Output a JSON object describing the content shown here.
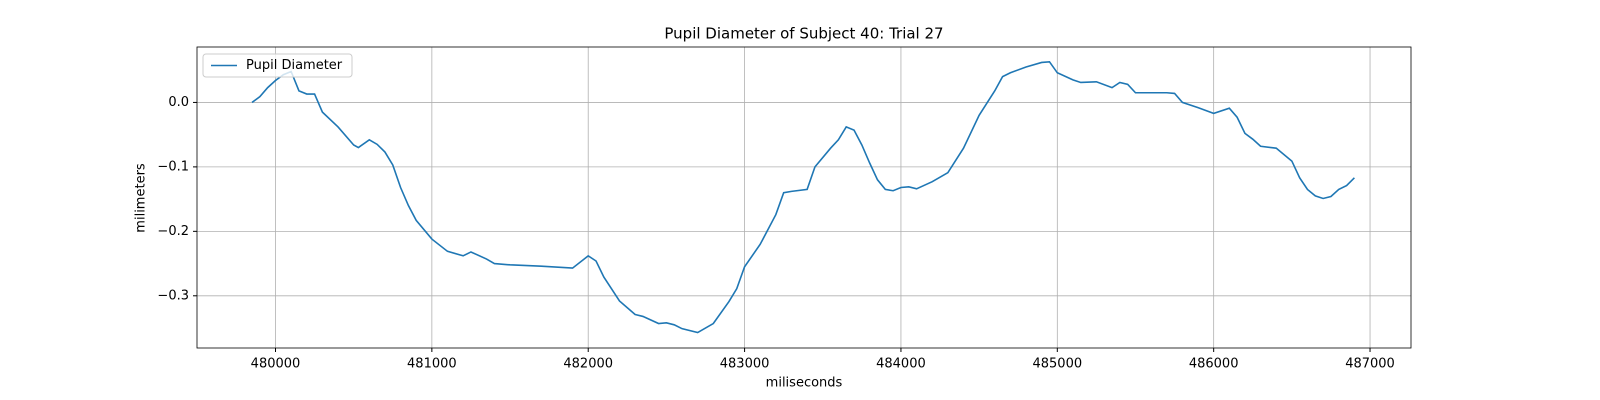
{
  "chart_data": {
    "type": "line",
    "title": "Pupil Diameter of Subject 40: Trial 27",
    "xlabel": "miliseconds",
    "ylabel": "milimeters",
    "x": [
      479850,
      479900,
      479950,
      480000,
      480050,
      480100,
      480150,
      480200,
      480250,
      480300,
      480400,
      480500,
      480530,
      480600,
      480650,
      480700,
      480750,
      480800,
      480850,
      480900,
      481000,
      481100,
      481200,
      481250,
      481350,
      481400,
      481500,
      481700,
      481900,
      482000,
      482050,
      482100,
      482200,
      482300,
      482350,
      482450,
      482500,
      482550,
      482600,
      482700,
      482800,
      482900,
      482950,
      483000,
      483100,
      483200,
      483250,
      483300,
      483400,
      483450,
      483550,
      483600,
      483650,
      483700,
      483750,
      483800,
      483850,
      483900,
      483950,
      484000,
      484050,
      484100,
      484200,
      484300,
      484400,
      484500,
      484600,
      484650,
      484700,
      484800,
      484900,
      484950,
      485000,
      485100,
      485150,
      485250,
      485350,
      485400,
      485450,
      485500,
      485600,
      485700,
      485750,
      485800,
      485900,
      486000,
      486100,
      486150,
      486200,
      486250,
      486300,
      486400,
      486500,
      486550,
      486600,
      486650,
      486700,
      486750,
      486800,
      486850,
      486900
    ],
    "series": [
      {
        "name": "Pupil Diameter",
        "color": "#1f77b4",
        "values": [
          0.0,
          0.009,
          0.023,
          0.034,
          0.043,
          0.048,
          0.018,
          0.013,
          0.013,
          -0.015,
          -0.038,
          -0.066,
          -0.07,
          -0.058,
          -0.065,
          -0.077,
          -0.097,
          -0.132,
          -0.16,
          -0.183,
          -0.212,
          -0.231,
          -0.238,
          -0.232,
          -0.243,
          -0.25,
          -0.252,
          -0.254,
          -0.257,
          -0.238,
          -0.246,
          -0.271,
          -0.308,
          -0.329,
          -0.332,
          -0.343,
          -0.342,
          -0.345,
          -0.351,
          -0.357,
          -0.343,
          -0.309,
          -0.289,
          -0.255,
          -0.22,
          -0.174,
          -0.14,
          -0.138,
          -0.135,
          -0.1,
          -0.071,
          -0.058,
          -0.038,
          -0.043,
          -0.066,
          -0.094,
          -0.12,
          -0.135,
          -0.137,
          -0.132,
          -0.131,
          -0.134,
          -0.123,
          -0.109,
          -0.071,
          -0.02,
          0.018,
          0.04,
          0.046,
          0.055,
          0.062,
          0.063,
          0.046,
          0.035,
          0.031,
          0.032,
          0.023,
          0.031,
          0.028,
          0.015,
          0.015,
          0.015,
          0.014,
          0.0,
          -0.008,
          -0.017,
          -0.009,
          -0.023,
          -0.048,
          -0.057,
          -0.068,
          -0.071,
          -0.091,
          -0.117,
          -0.135,
          -0.145,
          -0.149,
          -0.146,
          -0.135,
          -0.129,
          -0.117
        ]
      }
    ],
    "xlim": [
      479498,
      487262
    ],
    "ylim": [
      -0.381,
      0.086
    ],
    "xticks": [
      480000,
      481000,
      482000,
      483000,
      484000,
      485000,
      486000,
      487000
    ],
    "yticks": [
      {
        "value": -0.3,
        "label": "−0.3"
      },
      {
        "value": -0.2,
        "label": "−0.2"
      },
      {
        "value": -0.1,
        "label": "−0.1"
      },
      {
        "value": 0,
        "label": "0.0"
      }
    ],
    "grid": true,
    "legend": "upper left"
  }
}
